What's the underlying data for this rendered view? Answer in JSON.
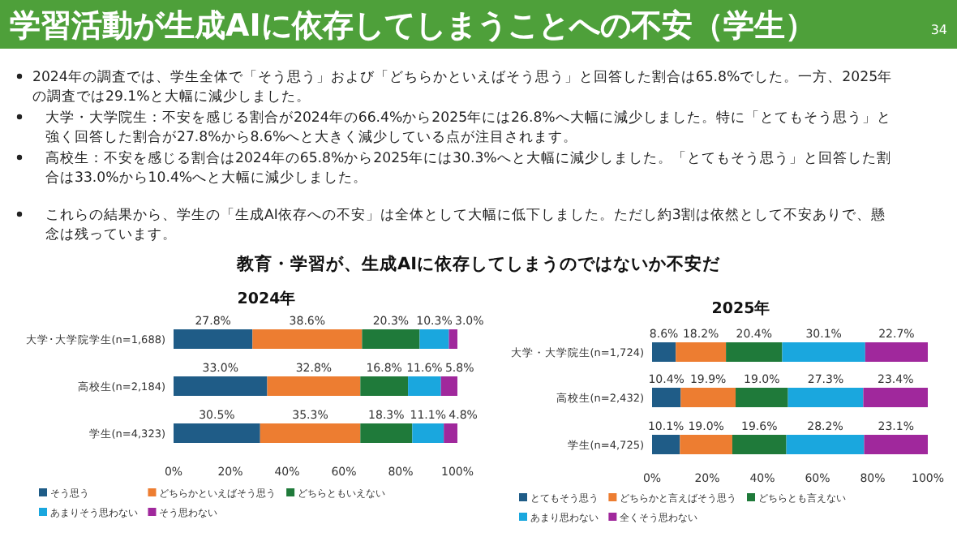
{
  "chart_data": [
    {
      "type": "other",
      "title": "学習活動が生成AIに依存してしまうことへの不安（学生）",
      "subtitle": "教育・学習が、生成AIに依存してしまうのではないか不安だ",
      "annotations": [
        "34",
        "2024年の調査では、学生全体で「そう思う」および「どちらかといえばそう思う」と回答した割合は65.8%でした。一方、2025年の調査では29.1%と大幅に減少しました。",
        "大学・大学院生：不安を感じる割合が2024年の66.4%から2025年には26.8%へ大幅に減少しました。特に「とてもそう思う」と強く回答した割合が27.8%から8.6%へと大きく減少している点が注目されます。",
        "高校生：不安を感じる割合は2024年の65.8%から2025年には30.3%へと大幅に減少しました。「とてもそう思う」と回答した割合は33.0%から10.4%へと大幅に減少しました。",
        "これらの結果から、学生の「生成AI依存への不安」は全体として大幅に低下しました。ただし約3割は依然として不安ありで、懸念は残っています。"
      ]
    },
    {
      "type": "bar",
      "title": "2024年",
      "orientation": "horizontal",
      "stacked": true,
      "legend": "bottom",
      "categories": [
        "大学･大学院学生(n=1,688)",
        "高校生(n=2,184)",
        "学生(n=4,323)"
      ],
      "xlim": [
        0,
        100
      ],
      "xticks": [
        {
          "value": 0,
          "label": "0%"
        },
        {
          "value": 20,
          "label": "20%"
        },
        {
          "value": 40,
          "label": "40%"
        },
        {
          "value": 60,
          "label": "60%"
        },
        {
          "value": 80,
          "label": "80%"
        },
        {
          "value": 100,
          "label": "100%"
        }
      ],
      "series": [
        {
          "name": "そう思う",
          "color": "#1f5c87",
          "values": [
            27.8,
            33.0,
            30.5
          ],
          "value_labels": [
            "27.8%",
            "33.0%",
            "30.5%"
          ]
        },
        {
          "name": "どちらかといえばそう思う",
          "color": "#ed7d31",
          "values": [
            38.6,
            32.8,
            35.3
          ],
          "value_labels": [
            "38.6%",
            "32.8%",
            "35.3%"
          ]
        },
        {
          "name": "どちらともいえない",
          "color": "#1f7a3a",
          "values": [
            20.3,
            16.8,
            18.3
          ],
          "value_labels": [
            "20.3%",
            "16.8%",
            "18.3%"
          ]
        },
        {
          "name": "あまりそう思わない",
          "color": "#1aa7de",
          "values": [
            10.3,
            11.6,
            11.1
          ],
          "value_labels": [
            "10.3%",
            "11.6%",
            "11.1%"
          ]
        },
        {
          "name": "そう思わない",
          "color": "#a0289c",
          "values": [
            3.0,
            5.8,
            4.8
          ],
          "value_labels": [
            "3.0%",
            "5.8%",
            "4.8%"
          ]
        }
      ]
    },
    {
      "type": "bar",
      "title": "2025年",
      "orientation": "horizontal",
      "stacked": true,
      "legend": "bottom",
      "categories": [
        "大学・大学院生(n=1,724)",
        "高校生(n=2,432)",
        "学生(n=4,725)"
      ],
      "xlim": [
        0,
        100
      ],
      "xticks": [
        {
          "value": 0,
          "label": "0%"
        },
        {
          "value": 20,
          "label": "20%"
        },
        {
          "value": 40,
          "label": "40%"
        },
        {
          "value": 60,
          "label": "60%"
        },
        {
          "value": 80,
          "label": "80%"
        },
        {
          "value": 100,
          "label": "100%"
        }
      ],
      "series": [
        {
          "name": "とてもそう思う",
          "color": "#1f5c87",
          "values": [
            8.6,
            10.4,
            10.1
          ],
          "value_labels": [
            "8.6%",
            "10.4%",
            "10.1%"
          ]
        },
        {
          "name": "どちらかと言えばそう思う",
          "color": "#ed7d31",
          "values": [
            18.2,
            19.9,
            19.0
          ],
          "value_labels": [
            "18.2%",
            "19.9%",
            "19.0%"
          ]
        },
        {
          "name": "どちらとも言えない",
          "color": "#1f7a3a",
          "values": [
            20.4,
            19.0,
            19.6
          ],
          "value_labels": [
            "20.4%",
            "19.0%",
            "19.6%"
          ]
        },
        {
          "name": "あまり思わない",
          "color": "#1aa7de",
          "values": [
            30.1,
            27.3,
            28.2
          ],
          "value_labels": [
            "30.1%",
            "27.3%",
            "28.2%"
          ]
        },
        {
          "name": "全くそう思わない",
          "color": "#a0289c",
          "values": [
            22.7,
            23.4,
            23.1
          ],
          "value_labels": [
            "22.7%",
            "23.4%",
            "23.1%"
          ]
        }
      ]
    }
  ]
}
